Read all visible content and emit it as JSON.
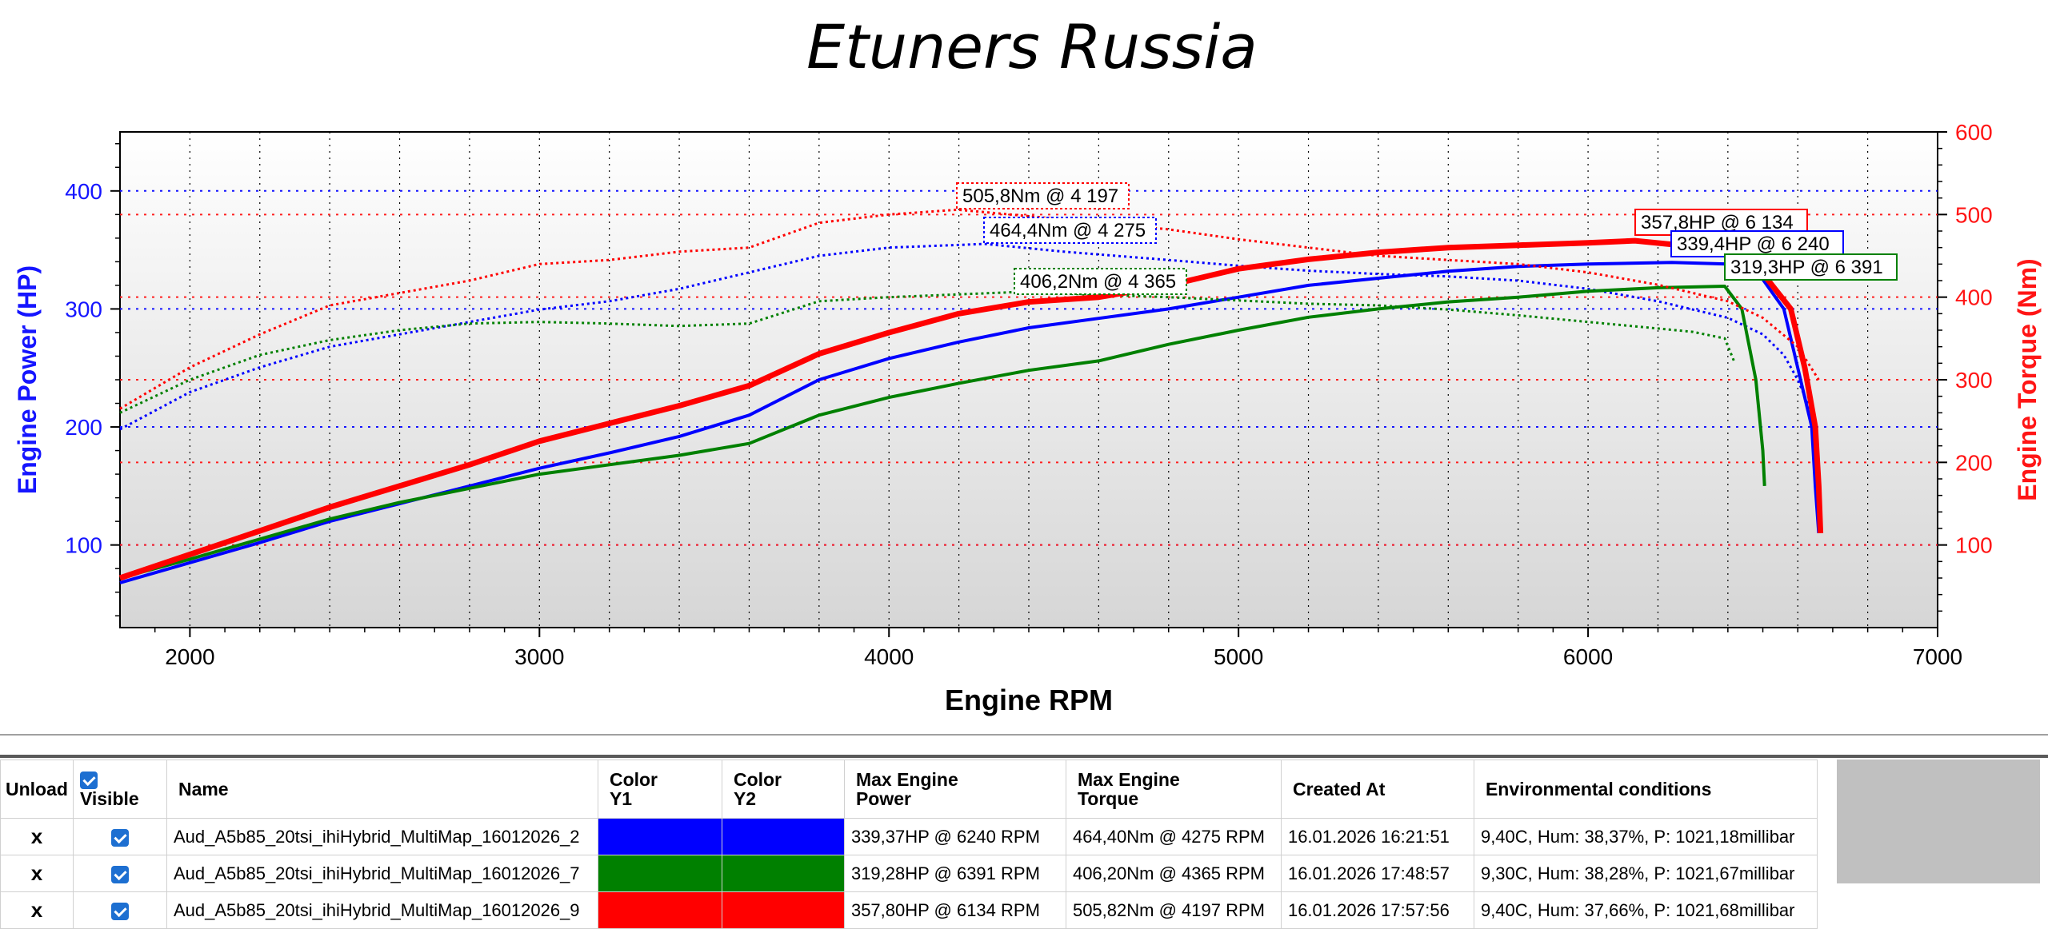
{
  "chart_data": {
    "type": "line",
    "title": "Etuners Russia",
    "xlabel": "Engine RPM",
    "ylabel_left": "Engine Power (HP)",
    "ylabel_right": "Engine Torque (Nm)",
    "xlim": [
      1800,
      7000
    ],
    "ylim_left": [
      30,
      450
    ],
    "ylim_right": [
      0,
      600
    ],
    "x_ticks": [
      "2000",
      "3000",
      "4000",
      "5000",
      "6000",
      "7000"
    ],
    "y_left_ticks": [
      "100",
      "200",
      "300",
      "400"
    ],
    "y_right_ticks": [
      "100",
      "200",
      "300",
      "400",
      "500",
      "600"
    ],
    "grid": true,
    "series": [
      {
        "color": "#0000ff",
        "power": [
          [
            1800,
            68
          ],
          [
            2000,
            85
          ],
          [
            2200,
            102
          ],
          [
            2400,
            120
          ],
          [
            2600,
            135
          ],
          [
            2800,
            150
          ],
          [
            3000,
            165
          ],
          [
            3200,
            178
          ],
          [
            3400,
            192
          ],
          [
            3600,
            210
          ],
          [
            3800,
            240
          ],
          [
            4000,
            258
          ],
          [
            4200,
            272
          ],
          [
            4400,
            284
          ],
          [
            4600,
            292
          ],
          [
            4800,
            300
          ],
          [
            5000,
            310
          ],
          [
            5200,
            320
          ],
          [
            5400,
            326
          ],
          [
            5600,
            332
          ],
          [
            5800,
            336
          ],
          [
            6000,
            338
          ],
          [
            6240,
            339.37
          ],
          [
            6400,
            338
          ],
          [
            6500,
            325
          ],
          [
            6560,
            300
          ],
          [
            6600,
            250
          ],
          [
            6640,
            200
          ],
          [
            6650,
            150
          ],
          [
            6660,
            110
          ]
        ],
        "torque": [
          [
            1800,
            240
          ],
          [
            2000,
            285
          ],
          [
            2200,
            315
          ],
          [
            2400,
            340
          ],
          [
            2600,
            355
          ],
          [
            2800,
            370
          ],
          [
            3000,
            385
          ],
          [
            3200,
            395
          ],
          [
            3400,
            410
          ],
          [
            3600,
            430
          ],
          [
            3800,
            450
          ],
          [
            4000,
            460
          ],
          [
            4275,
            464.4
          ],
          [
            4500,
            455
          ],
          [
            4800,
            445
          ],
          [
            5000,
            438
          ],
          [
            5200,
            432
          ],
          [
            5400,
            428
          ],
          [
            5600,
            425
          ],
          [
            5800,
            420
          ],
          [
            6000,
            410
          ],
          [
            6200,
            395
          ],
          [
            6400,
            375
          ],
          [
            6500,
            355
          ],
          [
            6560,
            330
          ],
          [
            6600,
            300
          ],
          [
            6650,
            250
          ]
        ],
        "peak_power_label": "339,4HP @ 6 240",
        "peak_torque_label": "464,4Nm @ 4 275"
      },
      {
        "color": "#008000",
        "power": [
          [
            1800,
            72
          ],
          [
            2000,
            88
          ],
          [
            2200,
            105
          ],
          [
            2400,
            122
          ],
          [
            2600,
            136
          ],
          [
            2800,
            148
          ],
          [
            3000,
            160
          ],
          [
            3200,
            168
          ],
          [
            3400,
            176
          ],
          [
            3600,
            186
          ],
          [
            3800,
            210
          ],
          [
            4000,
            225
          ],
          [
            4200,
            237
          ],
          [
            4400,
            248
          ],
          [
            4600,
            256
          ],
          [
            4800,
            270
          ],
          [
            5000,
            282
          ],
          [
            5200,
            293
          ],
          [
            5400,
            300
          ],
          [
            5600,
            306
          ],
          [
            5800,
            310
          ],
          [
            6000,
            315
          ],
          [
            6200,
            318
          ],
          [
            6391,
            319.28
          ],
          [
            6440,
            300
          ],
          [
            6480,
            240
          ],
          [
            6500,
            180
          ],
          [
            6505,
            150
          ]
        ],
        "torque": [
          [
            1800,
            260
          ],
          [
            2000,
            300
          ],
          [
            2200,
            330
          ],
          [
            2400,
            348
          ],
          [
            2600,
            360
          ],
          [
            2800,
            368
          ],
          [
            3000,
            370
          ],
          [
            3200,
            368
          ],
          [
            3400,
            365
          ],
          [
            3600,
            368
          ],
          [
            3800,
            395
          ],
          [
            4000,
            400
          ],
          [
            4365,
            406.2
          ],
          [
            4600,
            403
          ],
          [
            4800,
            400
          ],
          [
            5000,
            396
          ],
          [
            5200,
            392
          ],
          [
            5400,
            390
          ],
          [
            5600,
            385
          ],
          [
            5800,
            378
          ],
          [
            6000,
            370
          ],
          [
            6200,
            362
          ],
          [
            6300,
            358
          ],
          [
            6391,
            350
          ],
          [
            6420,
            320
          ]
        ],
        "peak_power_label": "319,3HP @ 6 391",
        "peak_torque_label": "406,2Nm @ 4 365"
      },
      {
        "color": "#ff0000",
        "power": [
          [
            1800,
            72
          ],
          [
            2000,
            92
          ],
          [
            2200,
            112
          ],
          [
            2400,
            132
          ],
          [
            2600,
            150
          ],
          [
            2800,
            168
          ],
          [
            3000,
            188
          ],
          [
            3200,
            203
          ],
          [
            3400,
            218
          ],
          [
            3600,
            235
          ],
          [
            3800,
            262
          ],
          [
            4000,
            280
          ],
          [
            4200,
            296
          ],
          [
            4400,
            306
          ],
          [
            4600,
            310
          ],
          [
            4800,
            320
          ],
          [
            5000,
            334
          ],
          [
            5200,
            342
          ],
          [
            5400,
            348
          ],
          [
            5600,
            352
          ],
          [
            5800,
            354
          ],
          [
            6000,
            356
          ],
          [
            6134,
            357.8
          ],
          [
            6400,
            350
          ],
          [
            6500,
            330
          ],
          [
            6580,
            300
          ],
          [
            6620,
            250
          ],
          [
            6650,
            200
          ],
          [
            6660,
            150
          ],
          [
            6665,
            110
          ]
        ],
        "torque": [
          [
            1800,
            265
          ],
          [
            2000,
            315
          ],
          [
            2200,
            355
          ],
          [
            2400,
            390
          ],
          [
            2600,
            405
          ],
          [
            2800,
            420
          ],
          [
            3000,
            440
          ],
          [
            3200,
            445
          ],
          [
            3400,
            455
          ],
          [
            3600,
            460
          ],
          [
            3800,
            490
          ],
          [
            4000,
            500
          ],
          [
            4197,
            505.8
          ],
          [
            4400,
            498
          ],
          [
            4600,
            490
          ],
          [
            4800,
            482
          ],
          [
            5000,
            470
          ],
          [
            5200,
            460
          ],
          [
            5400,
            450
          ],
          [
            5600,
            445
          ],
          [
            5800,
            440
          ],
          [
            6000,
            430
          ],
          [
            6200,
            415
          ],
          [
            6400,
            395
          ],
          [
            6500,
            375
          ],
          [
            6600,
            340
          ],
          [
            6660,
            300
          ]
        ],
        "peak_power_label": "357,8HP @ 6 134",
        "peak_torque_label": "505,8Nm @ 4 197"
      }
    ]
  },
  "table": {
    "headers": {
      "unload": "Unload",
      "visible": "Visible",
      "name": "Name",
      "color_y1_line1": "Color",
      "color_y1_line2": "Y1",
      "color_y2_line1": "Color",
      "color_y2_line2": "Y2",
      "max_power_line1": "Max Engine",
      "max_power_line2": "Power",
      "max_torque_line1": "Max Engine",
      "max_torque_line2": "Torque",
      "created_at": "Created At",
      "env": "Environmental conditions"
    },
    "rows": [
      {
        "unload": "x",
        "name": "Aud_A5b85_20tsi_ihiHybrid_MultiMap_16012026_2",
        "color": "#0000ff",
        "max_power": "339,37HP @ 6240 RPM",
        "max_torque": "464,40Nm @ 4275 RPM",
        "created_at": "16.01.2026 16:21:51",
        "env": "9,40C, Hum: 38,37%, P: 1021,18millibar"
      },
      {
        "unload": "x",
        "name": "Aud_A5b85_20tsi_ihiHybrid_MultiMap_16012026_7",
        "color": "#008000",
        "max_power": "319,28HP @ 6391 RPM",
        "max_torque": "406,20Nm @ 4365 RPM",
        "created_at": "16.01.2026 17:48:57",
        "env": "9,30C, Hum: 38,28%, P: 1021,67millibar"
      },
      {
        "unload": "x",
        "name": "Aud_A5b85_20tsi_ihiHybrid_MultiMap_16012026_9",
        "color": "#ff0000",
        "max_power": "357,80HP @ 6134 RPM",
        "max_torque": "505,82Nm @ 4197 RPM",
        "created_at": "16.01.2026 17:57:56",
        "env": "9,40C, Hum: 37,66%, P: 1021,68millibar"
      }
    ]
  }
}
